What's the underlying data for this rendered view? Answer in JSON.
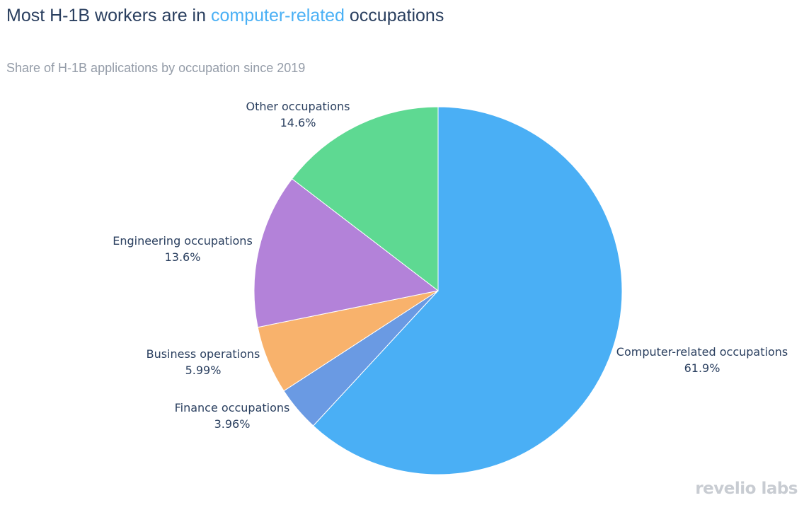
{
  "header": {
    "title_before": "Most H-1B workers are in ",
    "title_highlight": "computer-related",
    "title_after": " occupations",
    "subtitle": "Share of H-1B applications by occupation since 2019"
  },
  "brand": {
    "logo_text": "revelio labs"
  },
  "chart_data": {
    "type": "pie",
    "title": "Most H-1B workers are in computer-related occupations",
    "subtitle": "Share of H-1B applications by occupation since 2019",
    "direction": "clockwise",
    "start_angle_deg": 0,
    "slices": [
      {
        "label": "Computer-related occupations",
        "value": 61.9,
        "value_label": "61.9%",
        "color": "#4aaff5"
      },
      {
        "label": "Finance occupations",
        "value": 3.96,
        "value_label": "3.96%",
        "color": "#6a9ae3"
      },
      {
        "label": "Business operations",
        "value": 5.99,
        "value_label": "5.99%",
        "color": "#f8b26c"
      },
      {
        "label": "Engineering occupations",
        "value": 13.6,
        "value_label": "13.6%",
        "color": "#b382d9"
      },
      {
        "label": "Other occupations",
        "value": 14.6,
        "value_label": "14.6%",
        "color": "#5ed992"
      }
    ]
  }
}
